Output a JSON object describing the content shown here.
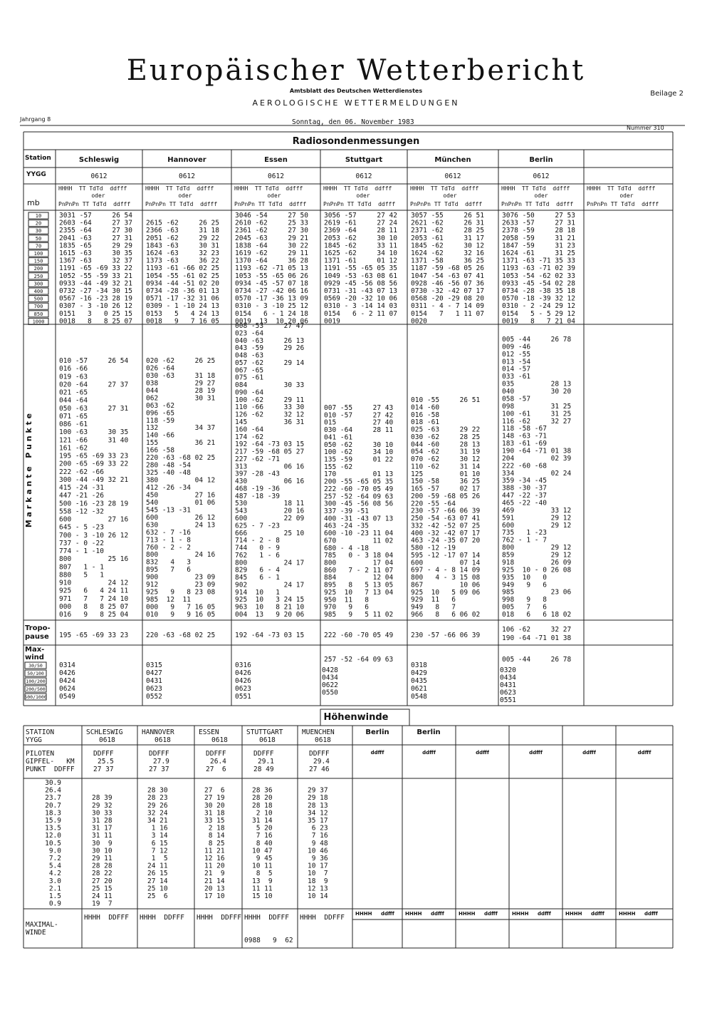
{
  "header": {
    "title": "Europäischer Wetterbericht",
    "publisher": "Amtsblatt des Deutschen Wetterdienstes",
    "subtitle": "AEROLOGISCHE WETTERMELDUNGEN",
    "supplement": "Beilage 2",
    "volume": "Jahrgang 8",
    "date": "Sonntag, den 06. November 1983",
    "number": "Nummer 310"
  },
  "radiosonde": {
    "title": "Radiosondenmessungen",
    "station_label": "Station",
    "yygg_label": "YYGG",
    "mb_label": "mb",
    "column_header": {
      "line1": "HHHH  TT TdTd  ddfff",
      "oder": "oder",
      "line2": "PnPnPn TT TdTd  ddfff"
    },
    "levels": [
      "10",
      "20",
      "30",
      "50",
      "70",
      "100",
      "150",
      "200",
      "250",
      "300",
      "400",
      "500",
      "700",
      "850",
      "1000"
    ],
    "points_label": "M a r k a n t e   P u n k t e",
    "tropo_label": [
      "Tropo-",
      "pause"
    ],
    "maxwind_label": [
      "Max-",
      "wind"
    ],
    "maxwind_levels": [
      "30/50",
      "50/100",
      "100/200",
      "200/500",
      "500/1000"
    ],
    "stations": [
      {
        "name": "Schleswig",
        "yygg": "0612",
        "levels": [
          "3031 -57     26 54",
          "2603 -64     27 37",
          "2355 -64     27 30",
          "2041 -63     27 31",
          "1835 -65     29 29",
          "1615 -63     30 35",
          "1367 -63     32 37",
          "1191 -65 -69 33 22",
          "1052 -55 -59 33 21",
          "0933 -44 -49 32 21",
          "0732 -27 -34 30 15",
          "0567 -16 -23 28 19",
          "0307 - 3 -10 26 12",
          "0151   3   0 25 15",
          "0018   8   8 25 07"
        ],
        "points": [
          "010 -57     26 54",
          "016 -66",
          "019 -63",
          "020 -64     27 37",
          "021 -65",
          "044 -64",
          "050 -63     27 31",
          "071 -65",
          "086 -61",
          "100 -63     30 35",
          "121 -66     31 40",
          "161 -62",
          "195 -65 -69 33 23",
          "200 -65 -69 33 22",
          "222 -62 -66",
          "300 -44 -49 32 21",
          "415 -24 -31",
          "447 -21 -26",
          "500 -16 -23 28 19",
          "558 -12 -32",
          "600         27 16",
          "645 - 5 -23",
          "700 - 3 -10 26 12",
          "737 - 0 -22",
          "774 - 1 -10",
          "800         25 16",
          "807   1 - 1",
          "880   5   1",
          "910         24 12",
          "925   6   4 24 11",
          "971   7   7 24 10",
          "000   8   8 25 07",
          "016   9   8 25 04"
        ],
        "tropo": [
          "195 -65 -69 33 23"
        ],
        "maxwind": [
          "0314",
          "0426",
          "0424",
          "0624",
          "0549"
        ]
      },
      {
        "name": "Hannover",
        "yygg": "0612",
        "levels": [
          null,
          "2615 -62     26 25",
          "2366 -63     31 18",
          "2051 -62     29 22",
          "1843 -63     30 31",
          "1624 -63     32 23",
          "1373 -63     36 22",
          "1193 -61 -66 02 25",
          "1054 -55 -61 02 25",
          "0934 -44 -51 02 20",
          "0734 -28 -36 01 13",
          "0571 -17 -32 31 06",
          "0309 - 1 -10 24 13",
          "0153   5   4 24 13",
          "0018   9   7 16 05"
        ],
        "points": [
          "020 -62     26 25",
          "026 -64",
          "030 -63     31 18",
          "038         29 27",
          "044         28 19",
          "062         30 31",
          "063 -62",
          "096 -65",
          "118 -59",
          "132         34 37",
          "140 -66",
          "155         36 21",
          "166 -58",
          "220 -63 -68 02 25",
          "280 -48 -54",
          "325 -40 -48",
          "380         04 12",
          "412 -26 -34",
          "450         27 16",
          "540         01 06",
          "545 -13 -31",
          "600         26 12",
          "630         24 13",
          "632 - 7 -16",
          "713 - 1 - 8",
          "760 - 2 - 2",
          "800         24 16",
          "832   4   3",
          "895   7   6",
          "900         23 09",
          "912         23 09",
          "925   9   8 23 08",
          "985  12  11",
          "000   9   7 16 05",
          "010   9   9 16 05"
        ],
        "tropo": [
          "220 -63 -68 02 25"
        ],
        "maxwind": [
          "0315",
          "0427",
          "0431",
          "0623",
          "0552"
        ]
      },
      {
        "name": "Essen",
        "yygg": "0612",
        "levels": [
          "3046 -54     27 50",
          "2610 -62     25 33",
          "2361 -62     27 30",
          "2045 -63     29 21",
          "1838 -64     30 22",
          "1619 -62     29 11",
          "1370 -64     36 28",
          "1193 -62 -71 05 13",
          "1053 -55 -65 06 26",
          "0934 -45 -57 07 18",
          "0734 -27 -42 06 16",
          "0570 -17 -36 13 09",
          "0310 - 3 -10 25 12",
          "0154   6 - 1 24 18",
          "0019  13  10 20 06"
        ],
        "points": [
          "008 -53     27 47",
          "023 -64",
          "040 -63     26 13",
          "043 -59     29 26",
          "048 -63",
          "057 -62     29 14",
          "067 -65",
          "075 -61",
          "084         30 33",
          "090 -64",
          "100 -62     29 11",
          "110 -66     33 30",
          "126 -62     32 12",
          "145         36 31",
          "160 -64",
          "174 -62",
          "192 -64 -73 03 15",
          "217 -59 -68 05 27",
          "227 -62 -71",
          "313         06 16",
          "397 -28 -43",
          "430         06 16",
          "468 -19 -36",
          "487 -18 -39",
          "530         18 11",
          "543         20 16",
          "600         22 09",
          "625 - 7 -23",
          "666         25 10",
          "714 - 2 - 8",
          "744   0 - 9",
          "762   1 - 6",
          "800         24 17",
          "829   6 - 4",
          "845   6 - 1",
          "902         24 17",
          "914  10   1",
          "925  10   3 24 15",
          "963  10   8 21 10",
          "004  13   9 20 06"
        ],
        "tropo": [
          "192 -64 -73 03 15"
        ],
        "maxwind": [
          "0316",
          "0426",
          "0426",
          "0623",
          "0551"
        ]
      },
      {
        "name": "Stuttgart",
        "yygg": "0612",
        "levels": [
          "3056 -57     27 42",
          "2619 -61     27 24",
          "2369 -64     28 11",
          "2053 -62     30 10",
          "1845 -62     33 11",
          "1625 -62     34 10",
          "1371 -61     01 12",
          "1191 -55 -65 05 35",
          "1049 -53 -63 08 61",
          "0929 -45 -56 08 56",
          "0731 -31 -43 07 13",
          "0569 -20 -32 10 06",
          "0310 - 3 -14 14 03",
          "0154   6 - 2 11 07",
          "0019"
        ],
        "points": [
          "007 -55     27 43",
          "010 -57     27 42",
          "015         27 40",
          "030 -64     28 11",
          "041 -61",
          "050 -62     30 10",
          "100 -62     34 10",
          "135 -59     01 22",
          "155 -62",
          "170         01 13",
          "200 -55 -65 05 35",
          "222 -60 -70 05 49",
          "257 -52 -64 09 63",
          "300 -45 -56 08 56",
          "337 -39 -51",
          "400 -31 -43 07 13",
          "463 -24 -35",
          "600 -10 -23 11 04",
          "670         11 02",
          "680 - 4 -18",
          "785   0 - 3 18 04",
          "800         17 04",
          "860   7 - 2 11 07",
          "884         12 04",
          "895   8   5 13 05",
          "925  10   7 13 04",
          "950  11   8",
          "970   9   6",
          "985   9   5 11 02"
        ],
        "tropo": [
          "222 -60 -70 05 49"
        ],
        "maxwind": [
          "257 -52 -64 09 63",
          "0428",
          "0434",
          "0622",
          "0550"
        ]
      },
      {
        "name": "München",
        "yygg": "0612",
        "levels": [
          "3057 -55     26 51",
          "2621 -62     26 31",
          "2371 -62     28 25",
          "2053 -61     31 17",
          "1845 -62     30 12",
          "1624 -62     32 16",
          "1371 -58     36 25",
          "1187 -59 -68 05 26",
          "1047 -54 -63 07 41",
          "0928 -46 -56 07 36",
          "0730 -32 -42 07 17",
          "0568 -20 -29 08 20",
          "0311 - 4 - 7 14 09",
          "0154   7   1 11 07",
          "0020"
        ],
        "points": [
          "010 -55     26 51",
          "014 -60",
          "016 -58",
          "018 -61",
          "025 -63     29 22",
          "030 -62     28 25",
          "044 -60     28 13",
          "054 -62     31 19",
          "070 -62     30 12",
          "110 -62     31 14",
          "125         01 10",
          "150 -58     36 25",
          "165 -57     02 17",
          "200 -59 -68 05 26",
          "220 -55 -64",
          "230 -57 -66 06 39",
          "250 -54 -63 07 41",
          "332 -42 -52 07 25",
          "400 -32 -42 07 17",
          "463 -24 -35 07 20",
          "580 -12 -19",
          "595 -12 -17 07 14",
          "600         07 14",
          "697 - 4 - 8 14 09",
          "800   4 - 3 15 08",
          "867         10 06",
          "925  10   5 09 06",
          "929  11   6",
          "949   8   7",
          "966   8   6 06 02"
        ],
        "tropo": [
          "230 -57 -66 06 39"
        ],
        "maxwind": [
          "0318",
          "0429",
          "0435",
          "0621",
          "0548"
        ]
      },
      {
        "name": "Berlin",
        "yygg": "0612",
        "levels": [
          "3076 -50     27 53",
          "2633 -57     27 31",
          "2378 -59     28 18",
          "2058 -59     31 21",
          "1847 -59     31 23",
          "1624 -61     31 25",
          "1371 -63 -71 35 33",
          "1193 -63 -71 02 39",
          "1053 -54 -62 02 33",
          "0933 -45 -54 02 28",
          "0734 -28 -38 35 18",
          "0570 -18 -39 32 12",
          "0310 - 2 -24 29 12",
          "0154   5 - 5 29 12",
          "0019   8   7 21 04"
        ],
        "points": [
          "005 -44     26 78",
          "009 -46",
          "012 -55",
          "013 -54",
          "014 -57",
          "033 -61",
          "035         28 13",
          "040         30 20",
          "058 -57",
          "098         31 25",
          "100 -61     31 25",
          "116 -62     32 27",
          "118 -58 -67",
          "148 -63 -71",
          "183 -61 -69",
          "190 -64 -71 01 38",
          "204         02 39",
          "222 -60 -68",
          "334         02 24",
          "359 -34 -45",
          "388 -30 -37",
          "447 -22 -37",
          "465 -22 -40",
          "469         33 12",
          "591         29 12",
          "600         29 12",
          "735   1 -23",
          "762 - 1 - 7",
          "800         29 12",
          "859         29 12",
          "918         26 09",
          "925  10 - 0 26 08",
          "935  10   0",
          "949   9   6",
          "985         23 06",
          "998   9   8",
          "005   7   6",
          "018   6   6 18 02"
        ],
        "tropo": [
          "106 -62     32 27",
          "190 -64 -71 01 38"
        ],
        "maxwind": [
          "005 -44     26 78",
          "0320",
          "0434",
          "0431",
          "0623",
          "0551"
        ]
      }
    ]
  },
  "hoehenwinde": {
    "title": "Höhenwinde",
    "station_label": "STATION",
    "yygg_label": "YYGG",
    "piloten_label": "PILOTEN",
    "gipfel_label": "GIPFEL-   KM",
    "punkt_label": "PUNKT  DDFFF",
    "extra_station": "Berlin",
    "ddfff": "ddfff",
    "heights": [
      "30.9",
      "26.4",
      "23.7",
      "20.7",
      "18.3",
      "15.9",
      "13.5",
      "12.0",
      "10.5",
      "9.0",
      "7.2",
      "5.4",
      "4.2",
      "3.0",
      "2.1",
      "1.5",
      "0.9"
    ],
    "stations": [
      {
        "name": "SCHLESWIG",
        "yygg": "0618",
        "piloten": "DDFFF",
        "km": "25.5",
        "punkt": "27 37",
        "winds": [
          null,
          null,
          "28 39",
          "29 32",
          "30 33",
          "31 28",
          "31 17",
          "31 11",
          "30  9",
          "30 10",
          "29 11",
          "28 28",
          "28 22",
          "27 20",
          "25 15",
          "24 11",
          "19  7"
        ]
      },
      {
        "name": "HANNOVER",
        "yygg": "0618",
        "piloten": "DDFFF",
        "km": "27.9",
        "punkt": "27 37",
        "winds": [
          null,
          "28 30",
          "28 23",
          "29 26",
          "32 24",
          "34 21",
          " 1 16",
          " 3 14",
          " 6 15",
          " 7 12",
          " 1  5",
          "24 11",
          "26 15",
          "27 14",
          "25 10",
          "25  6",
          null
        ]
      },
      {
        "name": "ESSEN",
        "yygg": "0618",
        "piloten": "DDFFF",
        "km": "26.4",
        "punkt": "27  6",
        "winds": [
          null,
          "27  6",
          "27 19",
          "30 20",
          "31 18",
          "33 15",
          " 2 18",
          " 8 14",
          " 8 25",
          "11 21",
          "12 16",
          "11 20",
          "21  9",
          "21 14",
          "20 13",
          "17 10",
          null
        ]
      },
      {
        "name": "STUTTGART",
        "yygg": "0618",
        "piloten": "DDFFF",
        "km": "29.1",
        "punkt": "28 49",
        "winds": [
          null,
          "28 36",
          "28 20",
          "28 18",
          " 2 10",
          "31 14",
          " 5 20",
          " 7 16",
          " 8 40",
          "10 47",
          " 9 45",
          "10 11",
          " 8  5",
          "13  9",
          "11 11",
          "15 10",
          null
        ]
      },
      {
        "name": "MUENCHEN",
        "yygg": "0618",
        "piloten": "DDFFF",
        "km": "29.4",
        "punkt": "27 46",
        "winds": [
          null,
          "29 37",
          "29 18",
          "28 13",
          "34 12",
          "35 17",
          " 6 23",
          " 7 16",
          " 9 48",
          "10 46",
          " 9 36",
          "10 17",
          "10  7",
          "18  9",
          "12 13",
          "10 14",
          null
        ]
      }
    ],
    "maximal_label": [
      "MAXIMAL-",
      "WINDE"
    ],
    "maximal_header": "HHHH  DDFFF",
    "maximal_header_lower": [
      "HHHH",
      "ddfff"
    ],
    "maximal_value": "0988   9  62"
  }
}
